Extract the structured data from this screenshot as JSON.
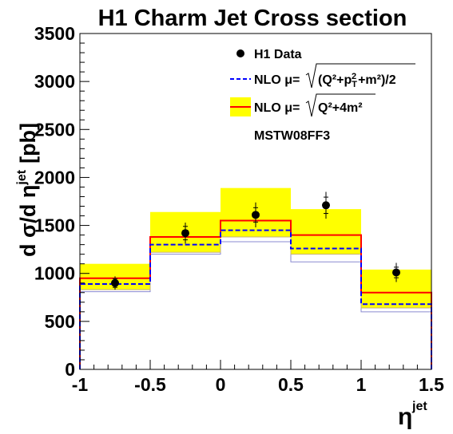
{
  "chart_data": {
    "type": "histogram",
    "title": "H1 Charm Jet Cross section",
    "xlabel": "η^jet",
    "ylabel": "d σ/d η^jet [pb]",
    "xlim": [
      -1,
      1.5
    ],
    "ylim": [
      0,
      3500
    ],
    "x_ticks": [
      "-1",
      "-0.5",
      "0",
      "0.5",
      "1",
      "1.5"
    ],
    "y_ticks": [
      "0",
      "500",
      "1000",
      "1500",
      "2000",
      "2500",
      "3000",
      "3500"
    ],
    "bin_edges": [
      -1,
      -0.5,
      0,
      0.5,
      1,
      1.5
    ],
    "series": [
      {
        "name": "H1 Data",
        "style": "points",
        "color": "#000000",
        "x": [
          -0.75,
          -0.25,
          0.25,
          0.75,
          1.25
        ],
        "y": [
          900,
          1420,
          1610,
          1710,
          1010
        ],
        "err_stat": [
          45,
          70,
          75,
          85,
          55
        ],
        "err_tot": [
          70,
          110,
          130,
          140,
          100
        ]
      },
      {
        "name": "NLO μ=√((Q²+p_T²+m²)/2)",
        "style": "dashed-histogram",
        "color": "#0000ff",
        "values": [
          890,
          1300,
          1450,
          1260,
          680
        ],
        "band_lower": [
          810,
          1200,
          1330,
          1120,
          600
        ]
      },
      {
        "name": "NLO μ=√(Q²+4m²)",
        "style": "solid-histogram-with-band",
        "color": "#ff0000",
        "band_color": "#ffff00",
        "values": [
          950,
          1380,
          1550,
          1400,
          800
        ],
        "band_lower": [
          830,
          1220,
          1380,
          1200,
          640
        ],
        "band_upper": [
          1100,
          1640,
          1890,
          1670,
          1040
        ]
      }
    ],
    "annotation": "MSTW08FF3"
  },
  "legend": {
    "data_label": "H1 Data",
    "nlo_prefix_1": "NLO μ=",
    "nlo_sqrt_1": "(Q²+p",
    "nlo_sub_T": "T",
    "nlo_sup_2": "2",
    "nlo_rest_1": "+m²)/2",
    "nlo_prefix_2": "NLO μ=",
    "nlo_sqrt_2": "Q²+4m²",
    "pdf_label": "MSTW08FF3"
  },
  "axes": {
    "xlabel_main": "η",
    "xlabel_sup": "jet",
    "ylabel_main": "d σ/d η",
    "ylabel_sup": "jet",
    "ylabel_unit": "[pb]"
  }
}
